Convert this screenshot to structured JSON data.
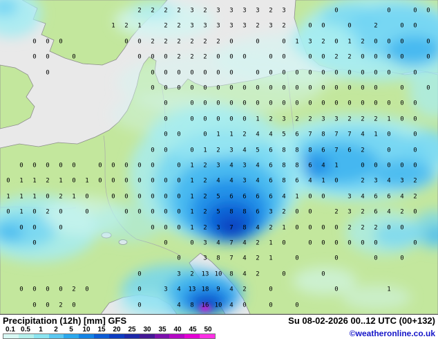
{
  "footer": {
    "title": "Precipitation (12h) [mm] GFS",
    "datetime": "Su 08-02-2026 00..12 UTC (00+132)",
    "copyright": "©weatheronline.co.uk",
    "legend": {
      "labels": [
        "0.1",
        "0.5",
        "1",
        "2",
        "5",
        "10",
        "15",
        "20",
        "25",
        "30",
        "35",
        "40",
        "45",
        "50"
      ],
      "colors": [
        "#d8f8f4",
        "#b4f0ec",
        "#8ce4f0",
        "#5cc8f0",
        "#2ca8ec",
        "#1484e4",
        "#0c5cd4",
        "#0c3cc0",
        "#1c28a8",
        "#441894",
        "#7c10ac",
        "#b408c4",
        "#e400d4",
        "#fc30e4"
      ]
    }
  },
  "map": {
    "colors": {
      "sea": "#e9e9e9",
      "land": "#c3e79d",
      "coast": "#8c8c8c",
      "border": "#a8a8a8"
    },
    "grid": {
      "rows": [
        "_ _ _ _ _ _ _ _ _ _ 2 2 2 2 3 2 3 3 3 3 2 3 _ _ _ 0 _ _ _ 0 _ 0 0",
        "_ _ _ _ _ _ _ _ 1 2 1 _ 2 2 3 3 3 3 3 2 3 2 _ 0 0 _ 0 _ 2 _ 0 0 _",
        "_ _ 0 0 0 _ _ _ _ 0 0 2 2 2 2 2 2 0 _ 0 _ 0 1 3 2 0 1 2 0 0 0 _ 0",
        "_ _ 0 0 _ 0 _ _ _ _ 0 0 0 2 2 2 0 0 0 _ 0 0 _ 0 0 2 2 0 0 0 0 _ 0",
        "_ _ _ 0 _ _ _ _ _ _ _ 0 0 0 0 0 0 0 _ 0 0 0 0 0 0 0 0 0 0 0 _ 0 _",
        "_ _ _ _ _ _ _ _ _ _ _ 0 0 0 0 0 0 0 0 0 0 0 0 0 0 0 0 0 0 _ 0 _ 0",
        "_ _ _ _ _ _ _ _ _ _ _ _ 0 _ 0 0 0 0 0 0 0 0 0 0 0 0 0 0 0 0 0 0 _",
        "_ _ _ _ _ _ _ _ _ _ _ _ 0 _ 0 0 0 0 0 1 2 3 2 2 3 3 2 2 2 1 0 0 _",
        "_ _ _ _ _ _ _ _ _ _ _ _ 0 0 _ 0 1 1 2 4 4 5 6 7 8 7 7 4 1 0 _ 0 _",
        "_ _ _ _ _ _ _ _ _ _ _ 0 0 _ 0 1 2 3 4 5 6 8 8 8 6 7 6 2 _ 0 _ 0 _",
        "_ 0 0 0 0 0 _ 0 0 0 0 0 _ 0 1 2 3 4 3 4 6 8 8 6 4 1 _ 0 0 0 0 0 _",
        "0 1 1 2 1 0 1 0 0 0 0 0 0 0 1 2 4 4 3 4 6 8 6 4 1 0 _ 2 3 4 3 2 _",
        "1 1 1 0 2 1 0 _ 0 0 0 0 0 0 1 2 5 6 6 6 6 4 1 0 0 _ 3 4 6 6 4 2 _",
        "0 1 0 2 0 _ 0 _ _ 0 0 0 0 0 1 2 5 8 8 6 3 2 0 0 _ 2 3 2 6 4 2 0 _",
        "_ 0 0 _ 0 _ _ _ _ _ _ 0 0 0 1 2 3 7 8 4 2 1 0 0 0 0 2 2 2 0 0 _ _",
        "_ _ 0 _ _ _ _ _ _ _ _ _ 0 _ 0 3 4 7 4 2 1 0 _ 0 0 0 0 0 0 _ _ 0 _",
        "_ _ _ _ _ _ _ _ _ _ _ _ _ 0 _ 3 8 7 4 2 1 _ 0 _ _ 0 _ _ 0 _ 0 _ _",
        "_ _ _ _ _ _ _ _ _ _ 0 _ _ 3 2 13 10 8 4 2 _ 0 _ _ 0 _ _ _ _ _ _ _ _",
        "_ 0 0 0 0 2 0 _ _ _ 0 _ 3 4 13 18 9 4 2 _ 0 _ _ _ _ 0 _ _ _ 1 _ _ _",
        "_ _ 0 0 2 0 _ _ _ _ 0 _ _ 4 8 16 10 4 0 _ 0 _ 0 _ _ _ _ _ _ _ _ _ _"
      ]
    }
  }
}
